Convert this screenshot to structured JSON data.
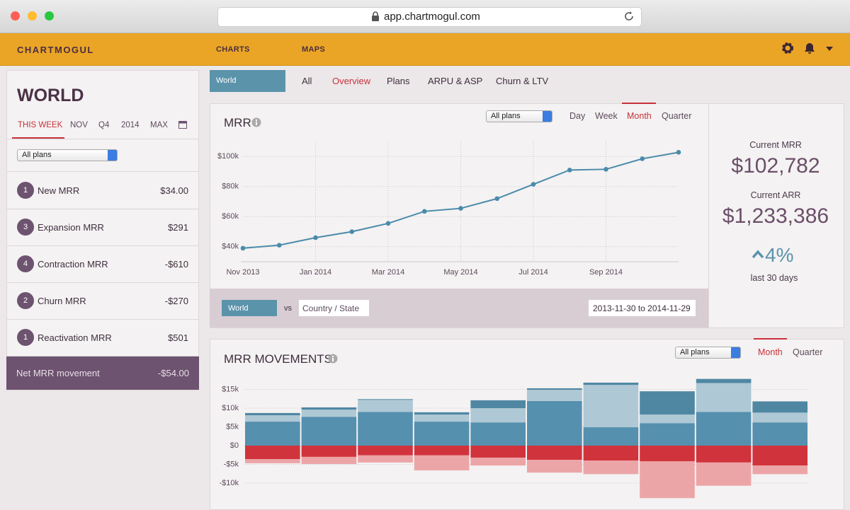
{
  "browser": {
    "url": "app.chartmogul.com"
  },
  "nav": {
    "logo": "CHARTMOGUL",
    "items": [
      "CHARTS",
      "MAPS"
    ]
  },
  "sidebar": {
    "title": "WORLD",
    "periods": [
      "THIS WEEK",
      "NOV",
      "Q4",
      "2014",
      "MAX"
    ],
    "select": "All plans",
    "rows": [
      {
        "badge": "1",
        "label": "New MRR",
        "value": "$34.00"
      },
      {
        "badge": "3",
        "label": "Expansion MRR",
        "value": "$291"
      },
      {
        "badge": "4",
        "label": "Contraction MRR",
        "value": "-$610"
      },
      {
        "badge": "2",
        "label": "Churn MRR",
        "value": "-$270"
      },
      {
        "badge": "1",
        "label": "Reactivation MRR",
        "value": "$501"
      }
    ],
    "net": {
      "label": "Net MRR movement",
      "value": "-$54.00"
    }
  },
  "tabs": {
    "selected": "World",
    "items": [
      "All",
      "Overview",
      "Plans",
      "ARPU & ASP",
      "Churn & LTV"
    ]
  },
  "mrr_panel": {
    "select": "All plans",
    "periods": [
      "Day",
      "Week",
      "Month",
      "Quarter"
    ],
    "compare": {
      "left": "World",
      "vs": "vs",
      "right": "Country / State",
      "range": "2013-11-30 to 2014-11-29"
    }
  },
  "summary": {
    "mrr_label": "Current MRR",
    "mrr": "$102,782",
    "arr_label": "Current ARR",
    "arr": "$1,233,386",
    "change": "4%",
    "change_label": "last 30 days"
  },
  "movements_panel": {
    "select": "All plans",
    "periods": [
      "Month",
      "Quarter"
    ]
  },
  "chart_data": [
    {
      "type": "line",
      "title": "MRR",
      "categories": [
        "Nov 2013",
        null,
        "Jan 2014",
        null,
        "Mar 2014",
        null,
        "May 2014",
        null,
        "Jul 2014",
        null,
        "Sep 2014",
        null,
        null
      ],
      "values": [
        39000,
        41000,
        46000,
        50000,
        55500,
        63500,
        65500,
        72000,
        81500,
        91000,
        91500,
        98500,
        102782
      ],
      "color": "#4a8bab",
      "ylim": [
        30000,
        110000
      ],
      "yticks": [
        {
          "value": 40000,
          "label": "$40k"
        },
        {
          "value": 60000,
          "label": "$60k"
        },
        {
          "value": 80000,
          "label": "$80k"
        },
        {
          "value": 100000,
          "label": "$100k"
        }
      ],
      "grid": true
    },
    {
      "type": "stacked_bar",
      "title": "MRR MOVEMENTS",
      "series": [
        {
          "color": "#5590ae",
          "values": [
            6400,
            7700,
            9000,
            6400,
            6200,
            11900,
            4900,
            6000,
            9000,
            6200
          ]
        },
        {
          "color": "#aec8d5",
          "values": [
            1700,
            1900,
            3200,
            1900,
            3800,
            3000,
            11300,
            2300,
            7700,
            2600
          ]
        },
        {
          "color": "#4f87a3",
          "values": [
            600,
            600,
            200,
            600,
            2100,
            400,
            600,
            6200,
            1100,
            3000
          ]
        },
        {
          "color": "#d1333c",
          "values": [
            -3600,
            -3000,
            -2600,
            -2600,
            -3200,
            -3800,
            -4000,
            -4200,
            -4500,
            -5300
          ]
        },
        {
          "color": "#eca5a7",
          "values": [
            -1100,
            -1900,
            -1900,
            -4000,
            -2100,
            -3400,
            -3600,
            -9800,
            -6200,
            -2300
          ]
        }
      ],
      "ylim": [
        -15000,
        18000
      ],
      "yticks": [
        {
          "value": 15000,
          "label": "$15k"
        },
        {
          "value": 10000,
          "label": "$10k"
        },
        {
          "value": 5000,
          "label": "$5k"
        },
        {
          "value": 0,
          "label": "$0"
        },
        {
          "value": -5000,
          "label": "-$5k"
        },
        {
          "value": -10000,
          "label": "-$10k"
        }
      ],
      "grid": true
    }
  ]
}
